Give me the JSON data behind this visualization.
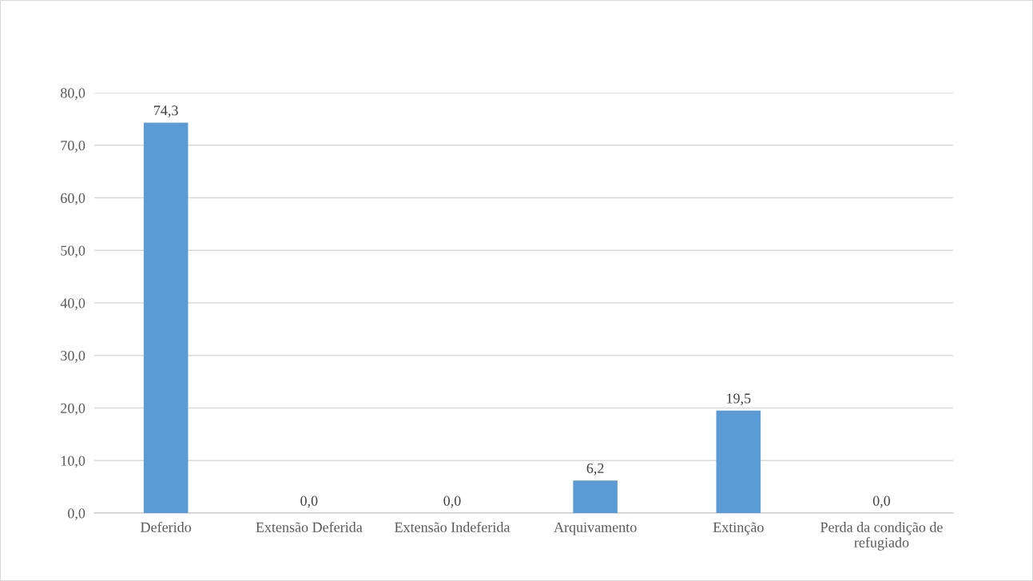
{
  "chart_data": {
    "type": "bar",
    "categories": [
      "Deferido",
      "Extensão Deferida",
      "Extensão Indeferida",
      "Arquivamento",
      "Extinção",
      "Perda da condição de\nrefugiado"
    ],
    "values": [
      74.3,
      0.0,
      0.0,
      6.2,
      19.5,
      0.0
    ],
    "value_labels": [
      "74,3",
      "0,0",
      "0,0",
      "6,2",
      "19,5",
      "0,0"
    ],
    "color": "#5b9bd5",
    "ylim": [
      0,
      80
    ],
    "yticks": [
      {
        "value": 0,
        "label": "0,0"
      },
      {
        "value": 10,
        "label": "10,0"
      },
      {
        "value": 20,
        "label": "20,0"
      },
      {
        "value": 30,
        "label": "30,0"
      },
      {
        "value": 40,
        "label": "40,0"
      },
      {
        "value": 50,
        "label": "50,0"
      },
      {
        "value": 60,
        "label": "60,0"
      },
      {
        "value": 70,
        "label": "70,0"
      },
      {
        "value": 80,
        "label": "80,0"
      }
    ],
    "grid": "y",
    "legend": false
  }
}
